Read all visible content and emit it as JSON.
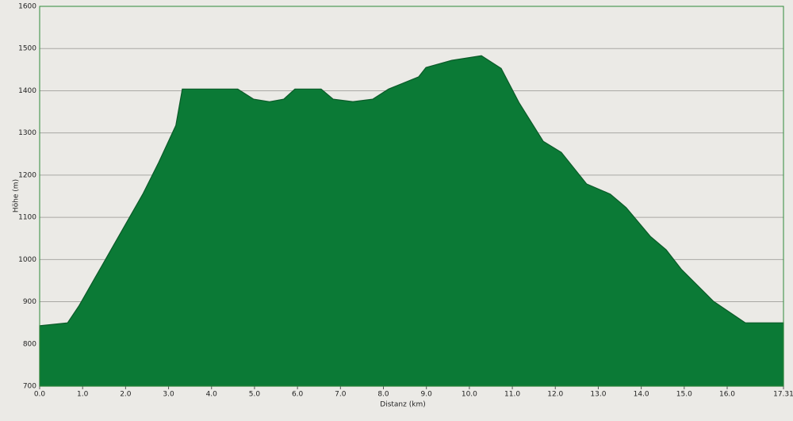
{
  "chart_data": {
    "type": "area",
    "x_label": "Distanz   (km)",
    "y_label": "Höhe (m)",
    "x": [
      0,
      0.65,
      0.92,
      1.29,
      1.66,
      2.03,
      2.4,
      2.77,
      3.17,
      3.32,
      4.61,
      4.98,
      5.35,
      5.68,
      5.94,
      6.55,
      6.83,
      7.29,
      7.75,
      8.12,
      8.82,
      8.99,
      9.59,
      10.28,
      10.74,
      11.16,
      11.72,
      12.14,
      12.73,
      13.28,
      13.65,
      14.21,
      14.58,
      14.94,
      15.68,
      16.42,
      17.31
    ],
    "values": [
      843,
      850,
      891,
      957,
      1023,
      1089,
      1155,
      1230,
      1318,
      1404,
      1404,
      1380,
      1374,
      1380,
      1404,
      1404,
      1380,
      1374,
      1380,
      1404,
      1433,
      1455,
      1472,
      1483,
      1453,
      1371,
      1280,
      1254,
      1179,
      1155,
      1123,
      1055,
      1023,
      976,
      901,
      850,
      850
    ],
    "color": "#0b7a36",
    "xlim": [
      0,
      17.31
    ],
    "ylim": [
      700,
      1600
    ],
    "xticks": [
      {
        "value": 0,
        "label": "0.0"
      },
      {
        "value": 1,
        "label": "1.0"
      },
      {
        "value": 2,
        "label": "2.0"
      },
      {
        "value": 3,
        "label": "3.0"
      },
      {
        "value": 4,
        "label": "4.0"
      },
      {
        "value": 5,
        "label": "5.0"
      },
      {
        "value": 6,
        "label": "6.0"
      },
      {
        "value": 7,
        "label": "7.0"
      },
      {
        "value": 8,
        "label": "8.0"
      },
      {
        "value": 9,
        "label": "9.0"
      },
      {
        "value": 10,
        "label": "10.0"
      },
      {
        "value": 11,
        "label": "11.0"
      },
      {
        "value": 12,
        "label": "12.0"
      },
      {
        "value": 13,
        "label": "13.0"
      },
      {
        "value": 14,
        "label": "14.0"
      },
      {
        "value": 15,
        "label": "15.0"
      },
      {
        "value": 16,
        "label": "16.0"
      },
      {
        "value": 17.31,
        "label": "17.31"
      }
    ],
    "yticks": [
      700,
      800,
      900,
      1000,
      1100,
      1200,
      1300,
      1400,
      1500,
      1600
    ],
    "grid": true
  }
}
